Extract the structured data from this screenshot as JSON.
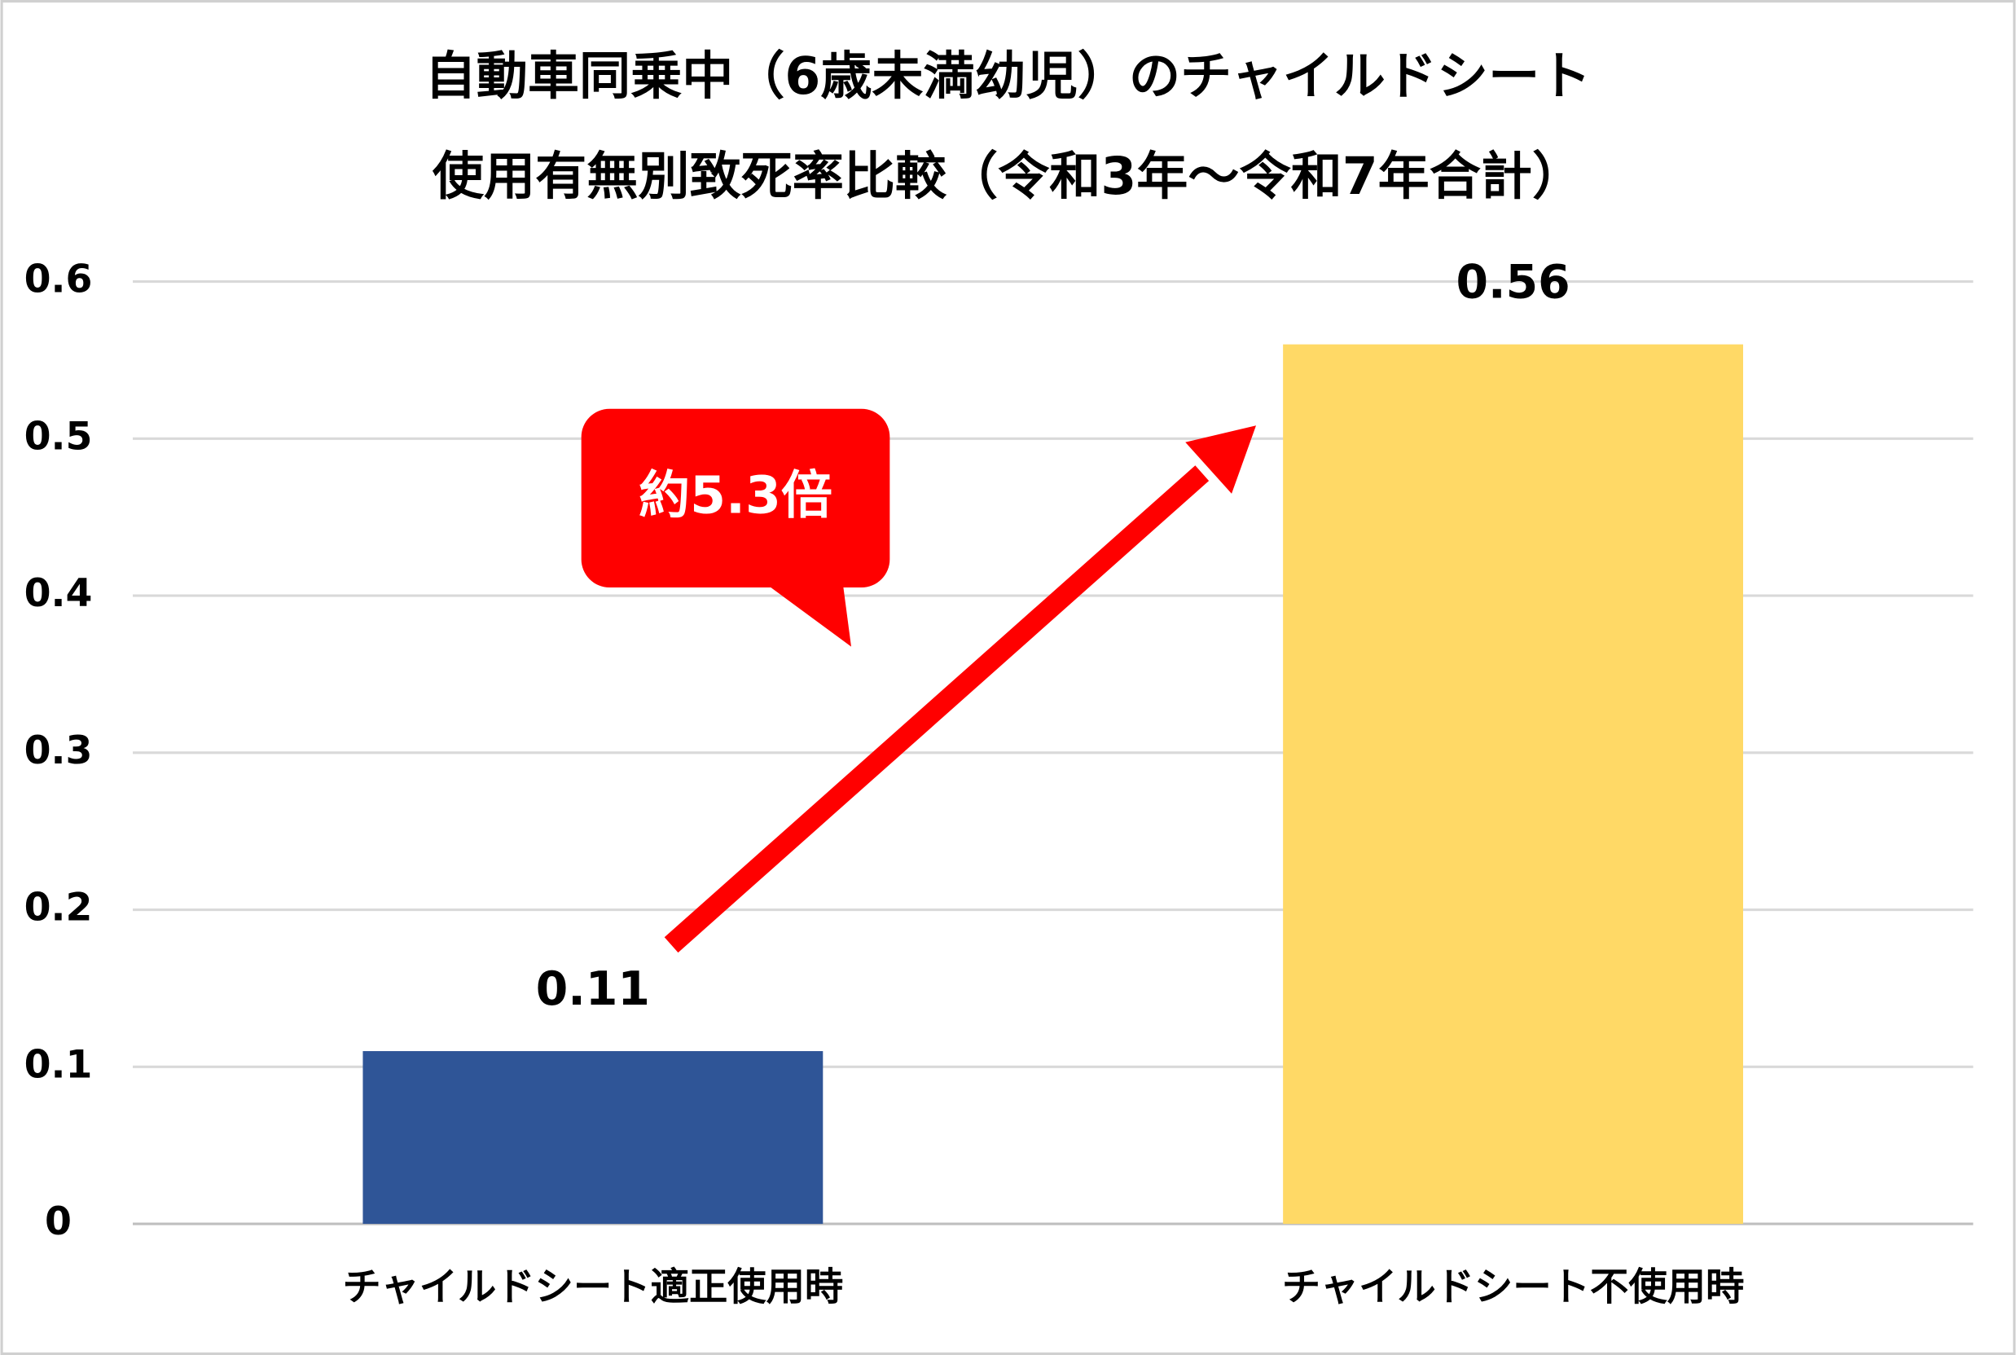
{
  "chart_data": {
    "type": "bar",
    "title": [
      "自動車同乗中（6歳未満幼児）のチャイルドシート",
      "使用有無別致死率比較（令和3年～令和7年合計）"
    ],
    "categories": [
      "チャイルドシート適正使用時",
      "チャイルドシート不使用時"
    ],
    "values": [
      0.11,
      0.56
    ],
    "colors": [
      "#2f5597",
      "#ffd966"
    ],
    "ylim": [
      0,
      0.6
    ],
    "yticks": [
      0,
      0.1,
      0.2,
      0.3,
      0.4,
      0.5,
      0.6
    ],
    "grid": true,
    "annotation": "約5.3倍"
  }
}
